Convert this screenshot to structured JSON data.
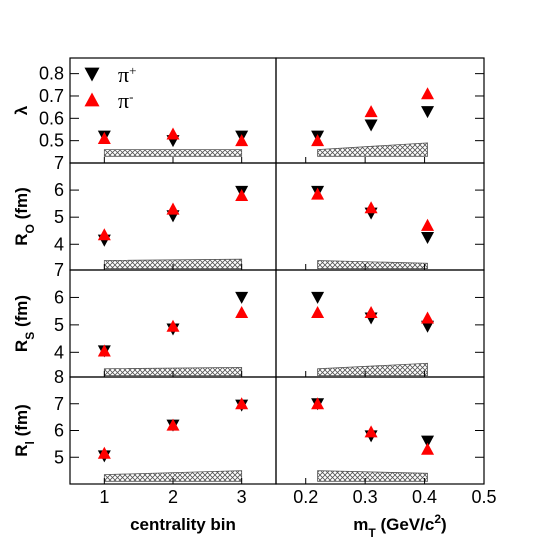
{
  "chart_data": {
    "type": "scatter",
    "colors": {
      "pi_plus": "#000000",
      "pi_minus": "#ff0000",
      "band": "#555555"
    },
    "legend": {
      "placement": "top-left",
      "entries": [
        {
          "series": "pi_plus",
          "base": "π",
          "sup": "+",
          "marker": "down-triangle"
        },
        {
          "series": "pi_minus",
          "base": "π",
          "sup": "-",
          "marker": "up-triangle"
        }
      ]
    },
    "columns": [
      {
        "xlabel_main": "centrality bin",
        "xlim": [
          0.5,
          3.5
        ],
        "xticks": [
          1,
          2,
          3
        ],
        "xtick_labels": [
          "1",
          "2",
          "3"
        ]
      },
      {
        "xlabel_main": "m",
        "xlabel_sub": "T",
        "xlabel_tail": " (GeV/c",
        "xlabel_sup": "2",
        "xlabel_end": ")",
        "xlim": [
          0.15,
          0.5
        ],
        "xticks": [
          0.2,
          0.3,
          0.4,
          0.5
        ],
        "xtick_labels": [
          "0.2",
          "0.3",
          "0.4",
          "0.5"
        ]
      }
    ],
    "rows": [
      {
        "ylabel_main": "λ",
        "ylabel_sub": "",
        "ylabel_unit": "",
        "ylim": [
          0.4,
          0.87
        ],
        "yticks": [
          0.5,
          0.6,
          0.7,
          0.8
        ],
        "ytick_labels": [
          "0.5",
          "0.6",
          "0.7",
          "0.8"
        ],
        "centrality": {
          "x": [
            1,
            2,
            3
          ],
          "pi_plus": [
            0.52,
            0.5,
            0.52
          ],
          "pi_minus": [
            0.51,
            0.53,
            0.5
          ],
          "sys_band": {
            "x": [
              1,
              3
            ],
            "low": [
              0.43,
              0.43
            ],
            "high": [
              0.46,
              0.46
            ]
          }
        },
        "mt": {
          "x": [
            0.22,
            0.31,
            0.405
          ],
          "pi_plus": [
            0.52,
            0.57,
            0.63
          ],
          "pi_minus": [
            0.5,
            0.63,
            0.71
          ],
          "sys_band": {
            "x": [
              0.22,
              0.405
            ],
            "low": [
              0.43,
              0.43
            ],
            "high": [
              0.46,
              0.49
            ]
          }
        }
      },
      {
        "ylabel_main": "R",
        "ylabel_sub": "O",
        "ylabel_unit": " (fm)",
        "ylim": [
          3.05,
          7.0
        ],
        "yticks": [
          4,
          5,
          6,
          7
        ],
        "ytick_labels": [
          "4",
          "5",
          "6",
          "7"
        ],
        "centrality": {
          "x": [
            1,
            2,
            3
          ],
          "pi_plus": [
            4.15,
            5.05,
            5.95
          ],
          "pi_minus": [
            4.35,
            5.3,
            5.8
          ],
          "sys_band": {
            "x": [
              1,
              3
            ],
            "low": [
              3.1,
              3.1
            ],
            "high": [
              3.4,
              3.45
            ]
          }
        },
        "mt": {
          "x": [
            0.22,
            0.31,
            0.405
          ],
          "pi_plus": [
            5.95,
            5.15,
            4.25
          ],
          "pi_minus": [
            5.85,
            5.35,
            4.7
          ],
          "sys_band": {
            "x": [
              0.22,
              0.405
            ],
            "low": [
              3.1,
              3.1
            ],
            "high": [
              3.4,
              3.3
            ]
          }
        }
      },
      {
        "ylabel_main": "R",
        "ylabel_sub": "S",
        "ylabel_unit": " (fm)",
        "ylim": [
          3.1,
          7.0
        ],
        "yticks": [
          4,
          5,
          6,
          7
        ],
        "ytick_labels": [
          "4",
          "5",
          "6",
          "7"
        ],
        "centrality": {
          "x": [
            1,
            2,
            3
          ],
          "pi_plus": [
            4.05,
            4.85,
            6.0
          ],
          "pi_minus": [
            4.05,
            4.95,
            5.45
          ],
          "sys_band": {
            "x": [
              1,
              3
            ],
            "low": [
              3.15,
              3.15
            ],
            "high": [
              3.4,
              3.45
            ]
          }
        },
        "mt": {
          "x": [
            0.22,
            0.31,
            0.405
          ],
          "pi_plus": [
            6.0,
            5.25,
            4.95
          ],
          "pi_minus": [
            5.45,
            5.45,
            5.25
          ],
          "sys_band": {
            "x": [
              0.22,
              0.405
            ],
            "low": [
              3.15,
              3.15
            ],
            "high": [
              3.4,
              3.6
            ]
          }
        }
      },
      {
        "ylabel_main": "R",
        "ylabel_sub": "l",
        "ylabel_unit": " (fm)",
        "ylim": [
          4.0,
          8.0
        ],
        "yticks": [
          5,
          6,
          7,
          8
        ],
        "ytick_labels": [
          "5",
          "6",
          "7",
          "8"
        ],
        "centrality": {
          "x": [
            1,
            2,
            3
          ],
          "pi_plus": [
            5.05,
            6.2,
            6.95
          ],
          "pi_minus": [
            5.15,
            6.2,
            7.0
          ],
          "sys_band": {
            "x": [
              1,
              3
            ],
            "low": [
              4.1,
              4.1
            ],
            "high": [
              4.35,
              4.5
            ]
          }
        },
        "mt": {
          "x": [
            0.22,
            0.31,
            0.405
          ],
          "pi_plus": [
            7.0,
            5.8,
            5.6
          ],
          "pi_minus": [
            7.0,
            5.95,
            5.3
          ],
          "sys_band": {
            "x": [
              0.22,
              0.405
            ],
            "low": [
              4.1,
              4.1
            ],
            "high": [
              4.5,
              4.4
            ]
          }
        }
      }
    ]
  }
}
